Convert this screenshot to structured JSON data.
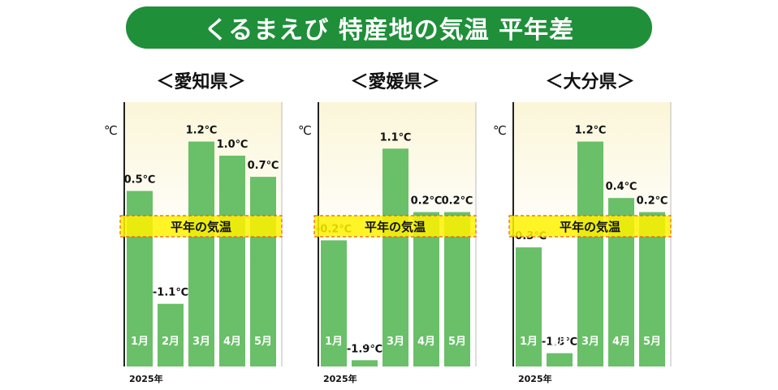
{
  "title": "くるまえび 特産地の気温 平年差",
  "unit": "℃",
  "year_label": "2025年",
  "normal_label": "平年の気温",
  "colors": {
    "banner": "#1f8f3a",
    "bar": "#6abf69",
    "band_fill": "#fff200",
    "band_border": "#e85a2a",
    "panel_top": "#fbf6d8"
  },
  "chart_data": [
    {
      "type": "bar",
      "title": "＜愛知県＞",
      "categories": [
        "1月",
        "2月",
        "3月",
        "4月",
        "5月"
      ],
      "values": [
        0.5,
        -1.1,
        1.2,
        1.0,
        0.7
      ],
      "value_labels": [
        "0.5℃",
        "-1.1℃",
        "1.2℃",
        "1.0℃",
        "0.7℃"
      ],
      "ylabel": "℃",
      "xlabel": "2025年"
    },
    {
      "type": "bar",
      "title": "＜愛媛県＞",
      "categories": [
        "1月",
        "2月",
        "3月",
        "4月",
        "5月"
      ],
      "values": [
        -0.2,
        -1.9,
        1.1,
        0.2,
        0.2
      ],
      "value_labels": [
        "-0.2℃",
        "-1.9℃",
        "1.1℃",
        "0.2℃",
        "0.2℃"
      ],
      "ylabel": "℃",
      "xlabel": "2025年"
    },
    {
      "type": "bar",
      "title": "＜大分県＞",
      "categories": [
        "1月",
        "2月",
        "3月",
        "4月",
        "5月"
      ],
      "values": [
        -0.3,
        -1.8,
        1.2,
        0.4,
        0.2
      ],
      "value_labels": [
        "-0.3℃",
        "-1.8℃",
        "1.2℃",
        "0.4℃",
        "0.2℃"
      ],
      "ylabel": "℃",
      "xlabel": "2025年"
    }
  ]
}
